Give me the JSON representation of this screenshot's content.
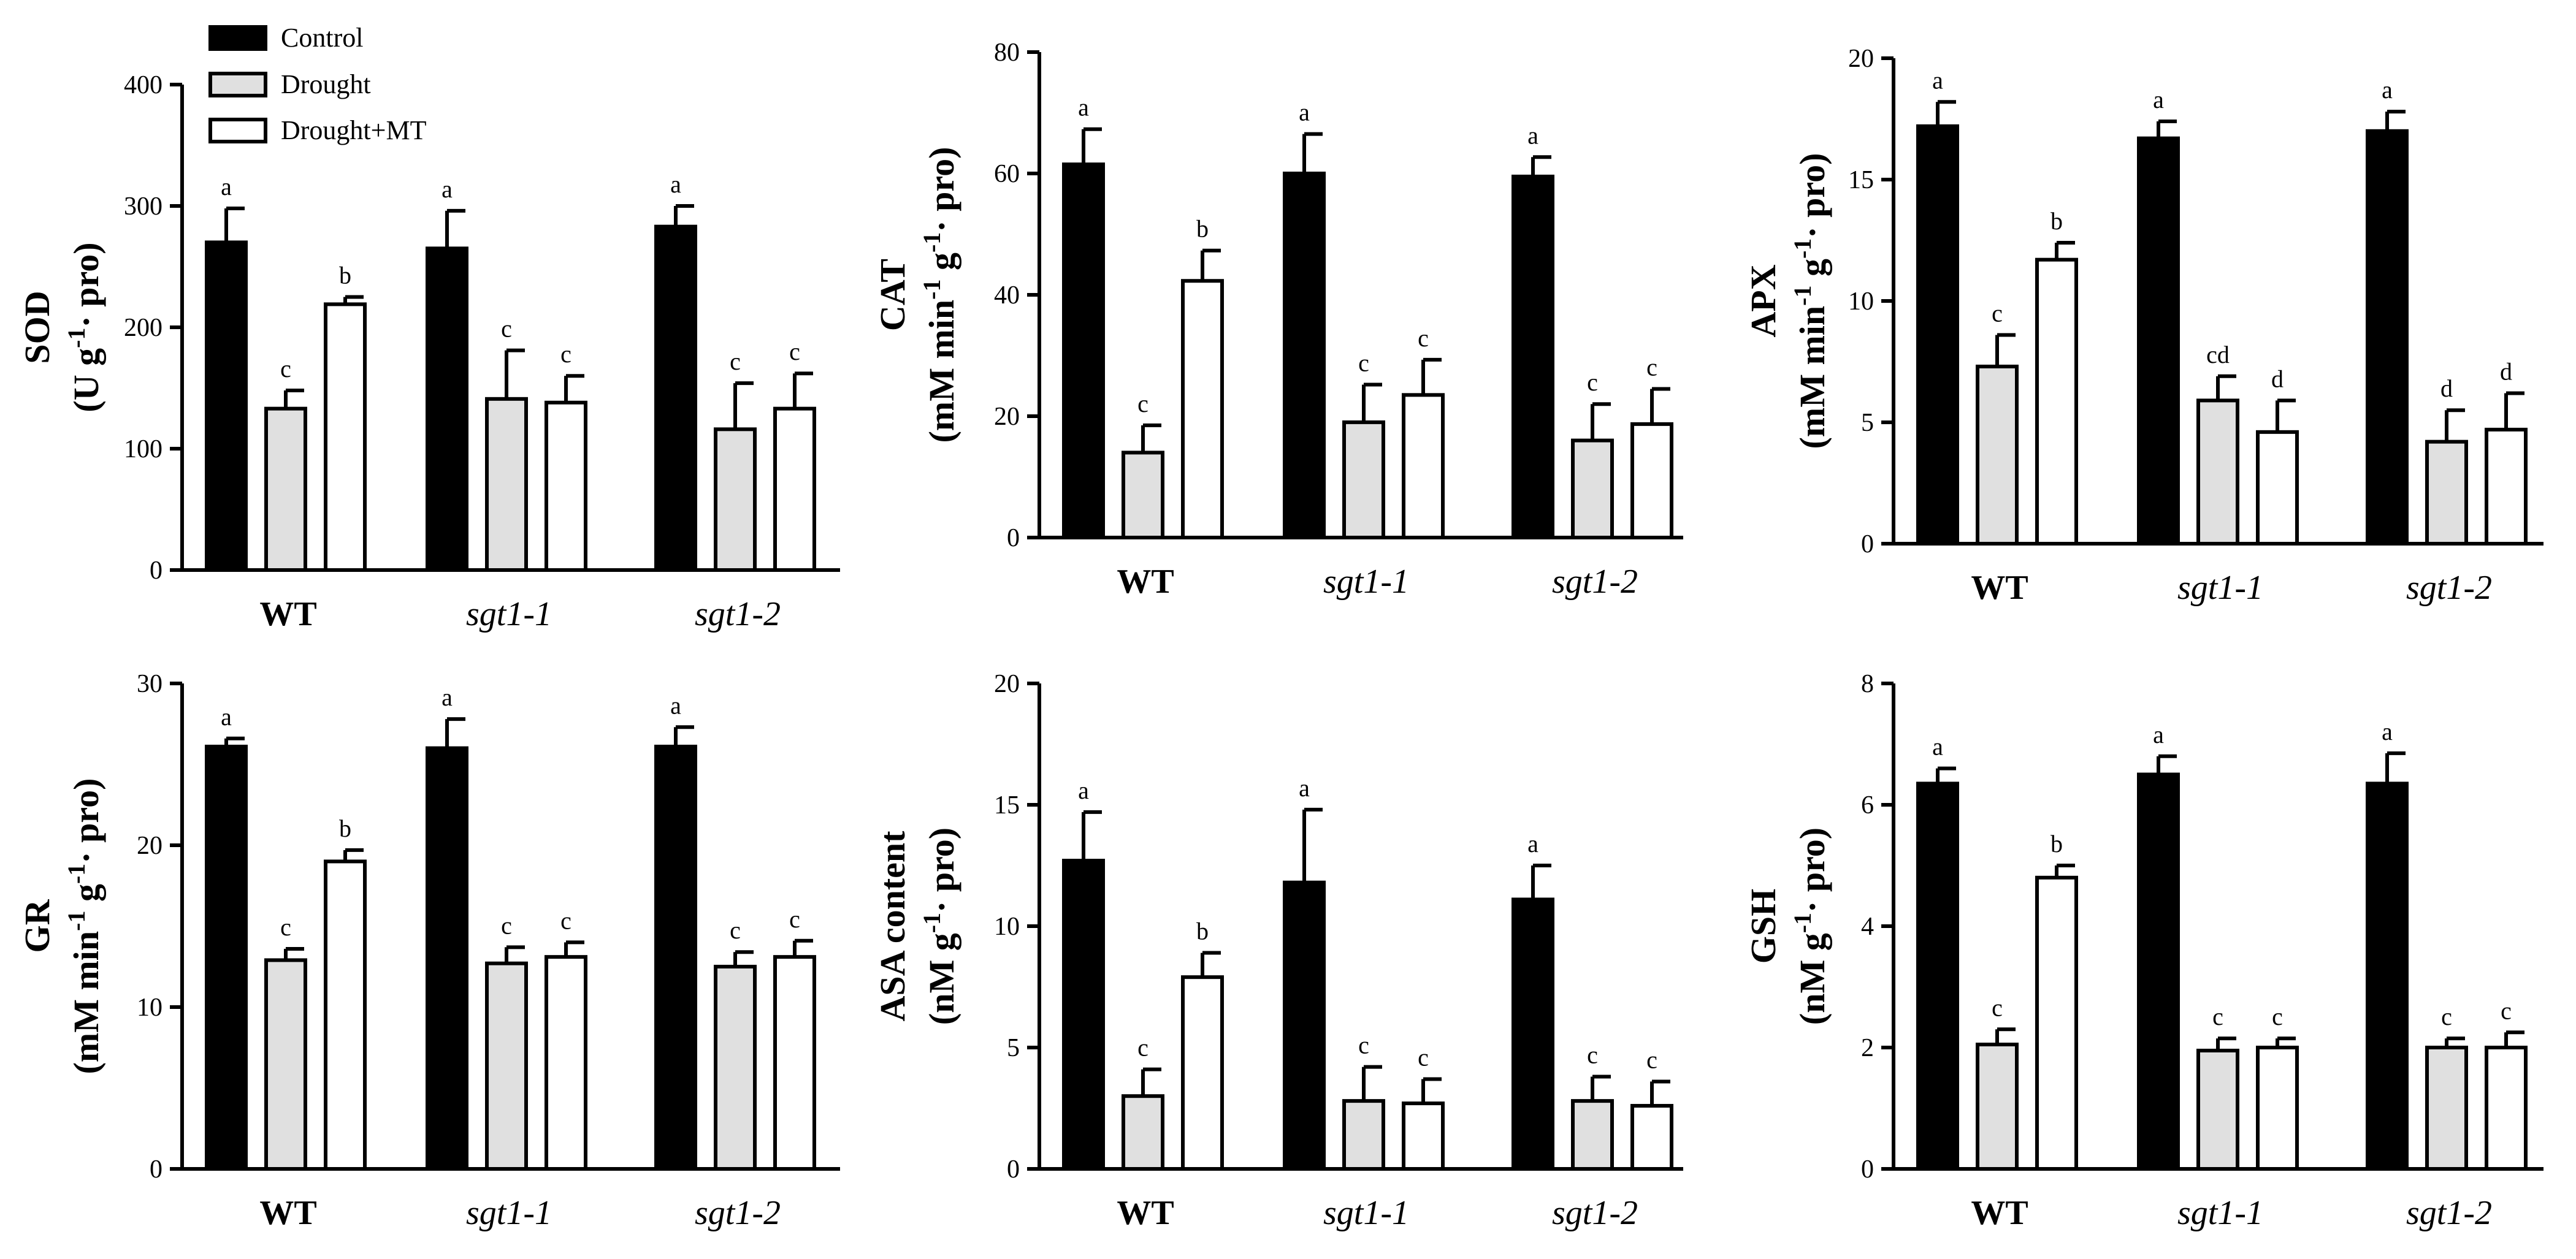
{
  "legend": {
    "entries": [
      {
        "name": "Control",
        "fill": "#000000"
      },
      {
        "name": "Drought",
        "fill": "#e0e0e0"
      },
      {
        "name": "Drought+MT",
        "fill": "#ffffff"
      }
    ]
  },
  "chart_data": [
    {
      "type": "bar",
      "title": "",
      "ylabel_line1": "SOD",
      "ylabel_line2": [
        "(U g",
        "-1",
        "· pro)"
      ],
      "categories": [
        "WT",
        "sgt1-1",
        "sgt1-2"
      ],
      "ylim": [
        0,
        400
      ],
      "yticks": [
        0,
        100,
        200,
        300,
        400
      ],
      "series": [
        {
          "name": "Control",
          "values": [
            270,
            265,
            283
          ],
          "errors": [
            28,
            31,
            17
          ],
          "letters": [
            "a",
            "a",
            "a"
          ]
        },
        {
          "name": "Drought",
          "values": [
            133,
            141,
            116
          ],
          "errors": [
            15,
            40,
            38
          ],
          "letters": [
            "c",
            "c",
            "c"
          ]
        },
        {
          "name": "Drought+MT",
          "values": [
            219,
            138,
            133
          ],
          "errors": [
            6,
            22,
            29
          ],
          "letters": [
            "b",
            "c",
            "c"
          ]
        }
      ]
    },
    {
      "type": "bar",
      "title": "",
      "ylabel_line1": "CAT",
      "ylabel_line2": [
        "(mM min",
        "-1",
        " g",
        "-1",
        "· pro)"
      ],
      "categories": [
        "WT",
        "sgt1-1",
        "sgt1-2"
      ],
      "ylim": [
        0,
        80
      ],
      "yticks": [
        0,
        20,
        40,
        60,
        80
      ],
      "series": [
        {
          "name": "Control",
          "values": [
            61.5,
            60,
            59.5
          ],
          "errors": [
            5.8,
            6.5,
            3.2
          ],
          "letters": [
            "a",
            "a",
            "a"
          ]
        },
        {
          "name": "Drought",
          "values": [
            14,
            19,
            16
          ],
          "errors": [
            4.5,
            6.2,
            6
          ],
          "letters": [
            "c",
            "c",
            "c"
          ]
        },
        {
          "name": "Drought+MT",
          "values": [
            42.3,
            23.5,
            18.7
          ],
          "errors": [
            5,
            5.8,
            5.8
          ],
          "letters": [
            "b",
            "c",
            "c"
          ]
        }
      ]
    },
    {
      "type": "bar",
      "title": "",
      "ylabel_line1": "APX",
      "ylabel_line2": [
        "(mM min",
        "-1",
        " g",
        "-1",
        "· pro)"
      ],
      "categories": [
        "WT",
        "sgt1-1",
        "sgt1-2"
      ],
      "ylim": [
        0,
        20
      ],
      "yticks": [
        0,
        5,
        10,
        15,
        20
      ],
      "series": [
        {
          "name": "Control",
          "values": [
            17.2,
            16.7,
            17
          ],
          "errors": [
            1,
            0.7,
            0.8
          ],
          "letters": [
            "a",
            "a",
            "a"
          ]
        },
        {
          "name": "Drought",
          "values": [
            7.3,
            5.9,
            4.2
          ],
          "errors": [
            1.3,
            1,
            1.3
          ],
          "letters": [
            "c",
            "cd",
            "d"
          ]
        },
        {
          "name": "Drought+MT",
          "values": [
            11.7,
            4.6,
            4.7
          ],
          "errors": [
            0.7,
            1.3,
            1.5
          ],
          "letters": [
            "b",
            "d",
            "d"
          ]
        }
      ]
    },
    {
      "type": "bar",
      "title": "",
      "ylabel_line1": "GR",
      "ylabel_line2": [
        "(mM min",
        "-1",
        " g",
        "-1",
        "· pro)"
      ],
      "categories": [
        "WT",
        "sgt1-1",
        "sgt1-2"
      ],
      "ylim": [
        0,
        30
      ],
      "yticks": [
        0,
        10,
        20,
        30
      ],
      "series": [
        {
          "name": "Control",
          "values": [
            26.1,
            26,
            26.1
          ],
          "errors": [
            0.5,
            1.8,
            1.2
          ],
          "letters": [
            "a",
            "a",
            "a"
          ]
        },
        {
          "name": "Drought",
          "values": [
            12.9,
            12.7,
            12.5
          ],
          "errors": [
            0.7,
            1,
            0.9
          ],
          "letters": [
            "c",
            "c",
            "c"
          ]
        },
        {
          "name": "Drought+MT",
          "values": [
            19,
            13.1,
            13.1
          ],
          "errors": [
            0.7,
            0.9,
            1
          ],
          "letters": [
            "b",
            "c",
            "c"
          ]
        }
      ]
    },
    {
      "type": "bar",
      "title": "",
      "ylabel_line1": "ASA content",
      "ylabel_line2": [
        "(nM g",
        "-1",
        "· pro)"
      ],
      "categories": [
        "WT",
        "sgt1-1",
        "sgt1-2"
      ],
      "ylim": [
        0,
        20
      ],
      "yticks": [
        0,
        5,
        10,
        15,
        20
      ],
      "series": [
        {
          "name": "Control",
          "values": [
            12.7,
            11.8,
            11.1
          ],
          "errors": [
            2,
            3,
            1.4
          ],
          "letters": [
            "a",
            "a",
            "a"
          ]
        },
        {
          "name": "Drought",
          "values": [
            3,
            2.8,
            2.8
          ],
          "errors": [
            1.1,
            1.4,
            1
          ],
          "letters": [
            "c",
            "c",
            "c"
          ]
        },
        {
          "name": "Drought+MT",
          "values": [
            7.9,
            2.7,
            2.6
          ],
          "errors": [
            1,
            1,
            1
          ],
          "letters": [
            "b",
            "c",
            "c"
          ]
        }
      ]
    },
    {
      "type": "bar",
      "title": "",
      "ylabel_line1": "GSH",
      "ylabel_line2": [
        "(nM g",
        "-1",
        "· pro)"
      ],
      "categories": [
        "WT",
        "sgt1-1",
        "sgt1-2"
      ],
      "ylim": [
        0,
        8
      ],
      "yticks": [
        0,
        2,
        4,
        6,
        8
      ],
      "series": [
        {
          "name": "Control",
          "values": [
            6.35,
            6.5,
            6.35
          ],
          "errors": [
            0.25,
            0.3,
            0.5
          ],
          "letters": [
            "a",
            "a",
            "a"
          ]
        },
        {
          "name": "Drought",
          "values": [
            2.05,
            1.95,
            2
          ],
          "errors": [
            0.25,
            0.2,
            0.15
          ],
          "letters": [
            "c",
            "c",
            "c"
          ]
        },
        {
          "name": "Drought+MT",
          "values": [
            4.8,
            2,
            2
          ],
          "errors": [
            0.2,
            0.15,
            0.25
          ],
          "letters": [
            "b",
            "c",
            "c"
          ]
        }
      ]
    }
  ]
}
